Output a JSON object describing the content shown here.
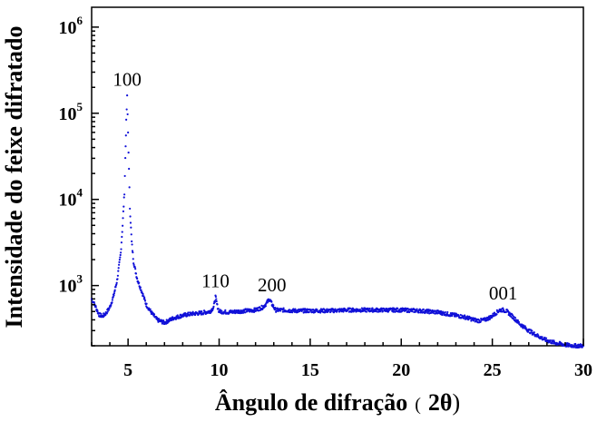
{
  "chart_data": {
    "type": "scatter",
    "title": "",
    "xlabel": "Ângulo de difração",
    "xlabel_unit_open": "(",
    "xlabel_unit": "2θ",
    "xlabel_unit_close": ")",
    "ylabel": "Intensidade do feixe difratado",
    "x_scale": "linear",
    "y_scale": "log",
    "xlim": [
      3,
      30
    ],
    "ylim": [
      200,
      1700000
    ],
    "x_ticks": [
      5,
      10,
      15,
      20,
      25,
      30
    ],
    "x_tick_labels": [
      "5",
      "10",
      "15",
      "20",
      "25",
      "30"
    ],
    "y_ticks": [
      1000,
      10000,
      100000,
      1000000
    ],
    "y_tick_labels": [
      {
        "base": "10",
        "exp": "3"
      },
      {
        "base": "10",
        "exp": "4"
      },
      {
        "base": "10",
        "exp": "5"
      },
      {
        "base": "10",
        "exp": "6"
      }
    ],
    "grid": false,
    "legend": "none",
    "series": [
      {
        "color": "#1010d8",
        "marker": "dot",
        "x": [
          3.0,
          3.2,
          3.4,
          3.6,
          3.8,
          4.0,
          4.2,
          4.4,
          4.6,
          4.7,
          4.8,
          4.85,
          4.9,
          4.95,
          5.0,
          5.05,
          5.1,
          5.2,
          5.3,
          5.5,
          5.8,
          6.0,
          6.3,
          6.6,
          7.0,
          7.5,
          8.0,
          8.5,
          9.0,
          9.5,
          9.7,
          9.8,
          9.9,
          10.0,
          10.5,
          11.0,
          11.5,
          12.0,
          12.4,
          12.6,
          12.75,
          12.9,
          13.1,
          13.5,
          14.0,
          15.0,
          16.0,
          17.0,
          18.0,
          19.0,
          20.0,
          21.0,
          22.0,
          23.0,
          23.5,
          24.0,
          24.3,
          24.6,
          24.9,
          25.2,
          25.4,
          25.6,
          25.8,
          26.1,
          26.5,
          27.0,
          27.5,
          28.0,
          28.5,
          29.0,
          29.5,
          30.0
        ],
        "y": [
          700,
          580,
          460,
          440,
          480,
          560,
          750,
          1150,
          2400,
          5000,
          12000,
          30000,
          80000,
          155000,
          60000,
          22000,
          8000,
          3200,
          1900,
          1200,
          800,
          600,
          480,
          400,
          370,
          420,
          450,
          470,
          480,
          500,
          560,
          740,
          580,
          500,
          490,
          500,
          510,
          520,
          560,
          620,
          700,
          610,
          520,
          520,
          510,
          510,
          510,
          520,
          520,
          520,
          520,
          510,
          490,
          450,
          430,
          400,
          390,
          400,
          430,
          480,
          520,
          520,
          500,
          440,
          360,
          300,
          260,
          230,
          215,
          205,
          200,
          200
        ]
      }
    ],
    "annotations": [
      {
        "text": "100",
        "x": 4.95,
        "y": 190000
      },
      {
        "text": "110",
        "x": 9.8,
        "y": 870
      },
      {
        "text": "200",
        "x": 12.9,
        "y": 780
      },
      {
        "text": "001",
        "x": 25.6,
        "y": 625
      }
    ]
  }
}
